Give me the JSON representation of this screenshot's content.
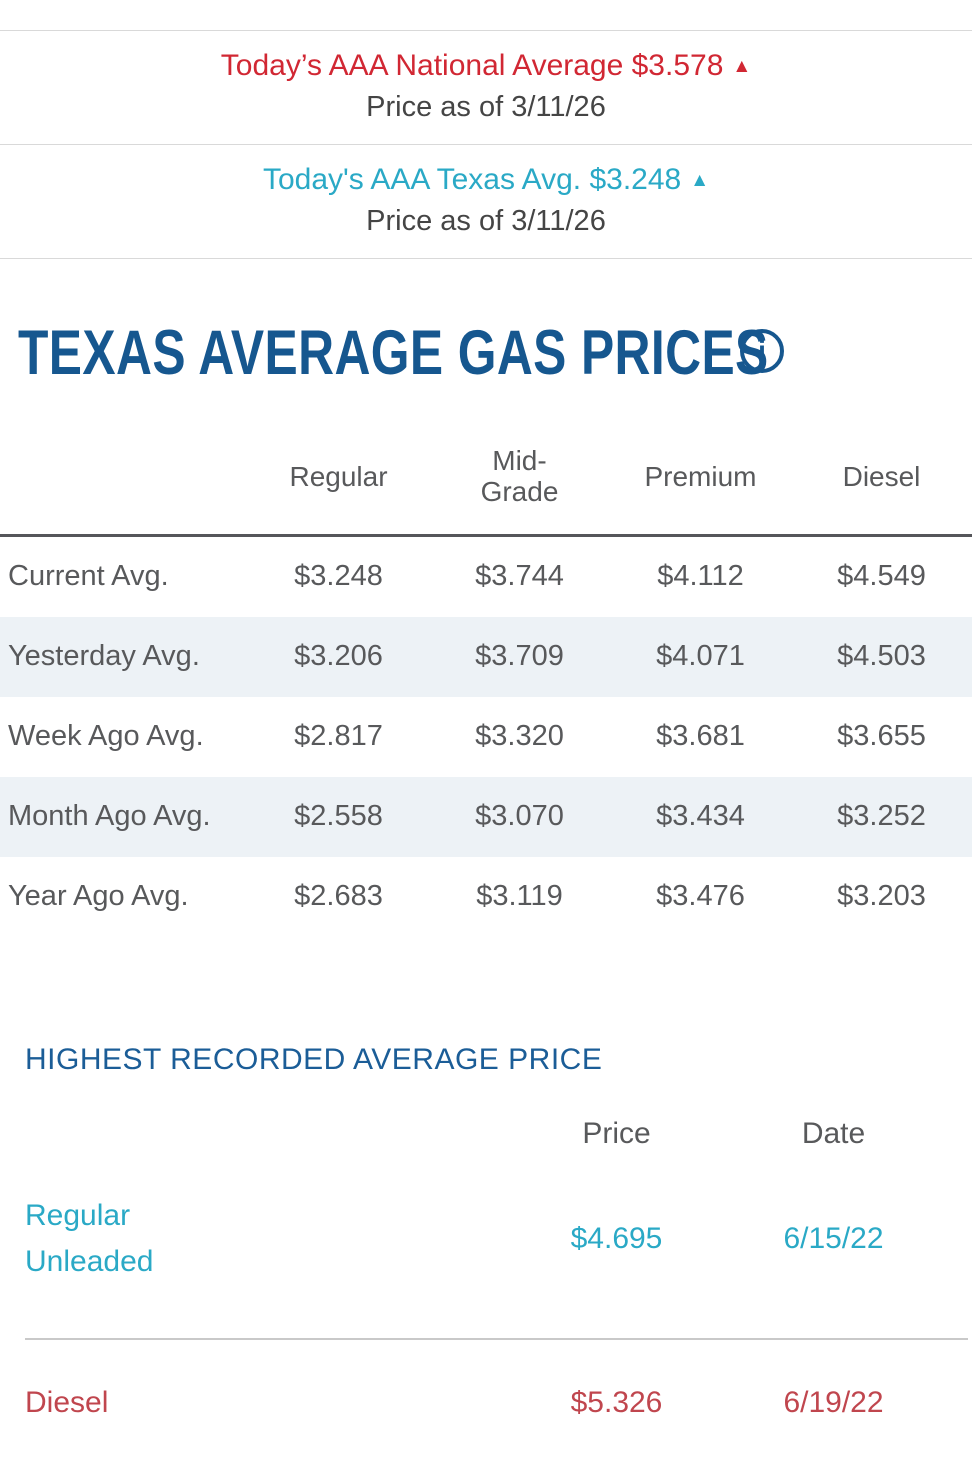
{
  "banners": {
    "national": {
      "text": "Today’s AAA National Average $3.578",
      "arrow": "▲",
      "date_line": "Price as of 3/11/26"
    },
    "state": {
      "text": "Today's AAA Texas Avg. $3.248",
      "arrow": "▲",
      "date_line": "Price as of 3/11/26"
    }
  },
  "page": {
    "title": "TEXAS AVERAGE GAS PRICES",
    "info_icon_glyph": "i"
  },
  "averages": {
    "columns": [
      "Regular",
      "Mid-Grade",
      "Premium",
      "Diesel"
    ],
    "rows": [
      {
        "label": "Current Avg.",
        "values": [
          "$3.248",
          "$3.744",
          "$4.112",
          "$4.549"
        ]
      },
      {
        "label": "Yesterday Avg.",
        "values": [
          "$3.206",
          "$3.709",
          "$4.071",
          "$4.503"
        ]
      },
      {
        "label": "Week Ago Avg.",
        "values": [
          "$2.817",
          "$3.320",
          "$3.681",
          "$3.655"
        ]
      },
      {
        "label": "Month Ago Avg.",
        "values": [
          "$2.558",
          "$3.070",
          "$3.434",
          "$3.252"
        ]
      },
      {
        "label": "Year Ago Avg.",
        "values": [
          "$2.683",
          "$3.119",
          "$3.476",
          "$3.203"
        ]
      }
    ]
  },
  "highest_recorded": {
    "heading": "HIGHEST RECORDED AVERAGE PRICE",
    "columns": [
      "Price",
      "Date"
    ],
    "rows": [
      {
        "label": "Regular Unleaded",
        "price": "$4.695",
        "date": "6/15/22"
      },
      {
        "label": "Diesel",
        "price": "$5.326",
        "date": "6/19/22"
      }
    ]
  },
  "colors": {
    "national_red": "#d12733",
    "texas_cyan": "#2aa9c6",
    "heading_blue": "#16578f",
    "section_heading_blue": "#1b5d97",
    "table_text_gray": "#58595b",
    "stripe_background": "#edf2f6",
    "diesel_red": "#c0464e"
  }
}
